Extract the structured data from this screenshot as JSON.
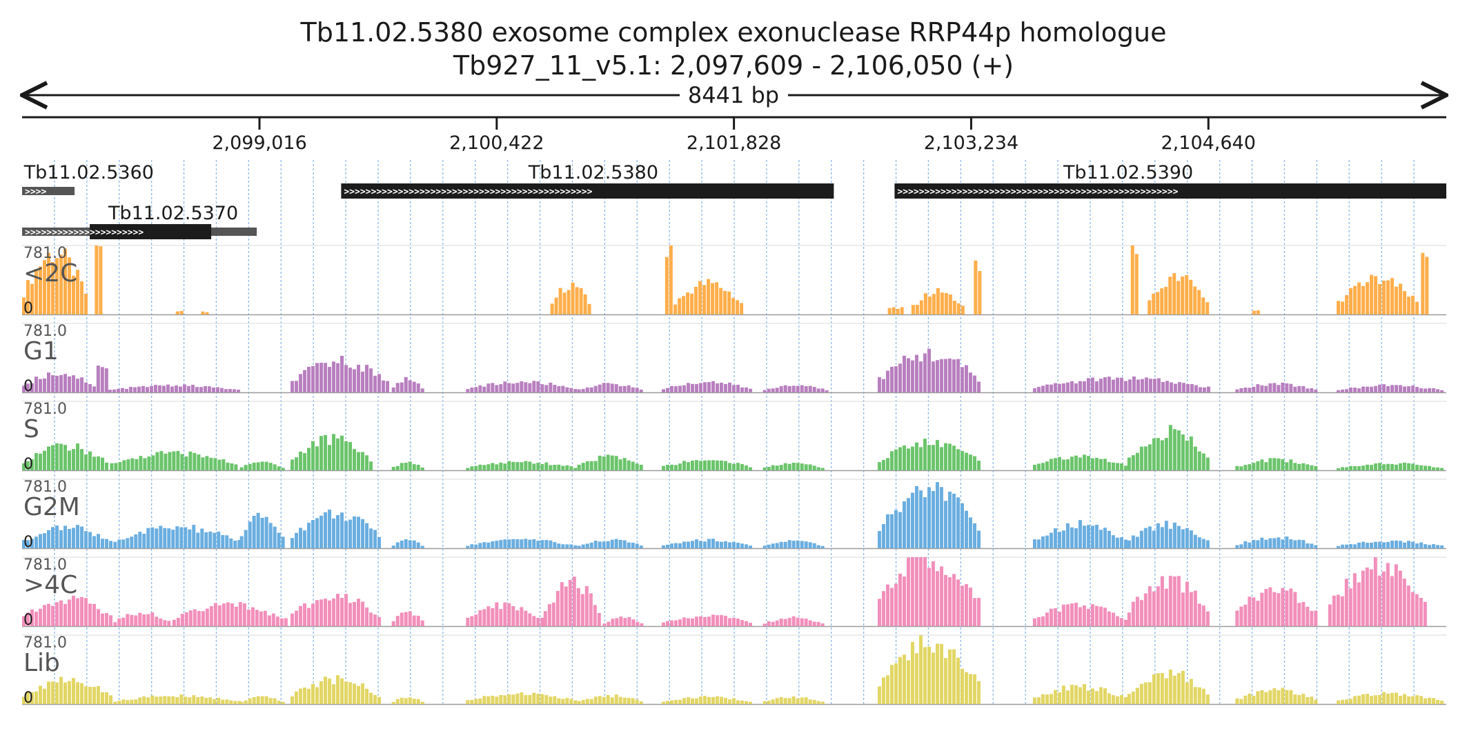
{
  "header": {
    "title": "Tb11.02.5380  exosome complex exonuclease RRP44p homologue",
    "locus": "Tb927_11_v5.1: 2,097,609 - 2,106,050 (+)",
    "span_label": "8441 bp"
  },
  "chart_data": {
    "type": "area",
    "chromosome": "Tb927_11_v5.1",
    "strand": "+",
    "x_range": [
      2097609,
      2106050
    ],
    "x_ticks": [
      {
        "value": 2099016,
        "label": "2,099,016"
      },
      {
        "value": 2100422,
        "label": "2,100,422"
      },
      {
        "value": 2101828,
        "label": "2,101,828"
      },
      {
        "value": 2103234,
        "label": "2,103,234"
      },
      {
        "value": 2104640,
        "label": "2,104,640"
      }
    ],
    "y_max_label": "781.0",
    "y_min_label": "0",
    "genes": [
      {
        "id": "Tb11.02.5360",
        "start": 2097609,
        "end": 2097920,
        "row": 0,
        "color": "#555555",
        "label_pos": 2097620
      },
      {
        "id": "Tb11.02.5380",
        "start": 2099500,
        "end": 2102420,
        "row": 0,
        "color": "#1c1c1c",
        "label_pos": 2100610
      },
      {
        "id": "Tb11.02.5390",
        "start": 2102780,
        "end": 2106050,
        "row": 0,
        "color": "#1c1c1c",
        "label_pos": 2103780
      },
      {
        "id": "Tb11.02.5370",
        "start": 2097609,
        "end": 2099000,
        "row": 1,
        "color": "#555555",
        "label_pos": 2098120,
        "core_start": 2098010,
        "core_end": 2098730
      }
    ],
    "tracks": [
      {
        "name": "<2C",
        "color": "#ffae4b",
        "peaks": [
          {
            "s": 2097609,
            "e": 2098000,
            "h": 0.88
          },
          {
            "s": 2098040,
            "e": 2098100,
            "h": 1.0
          },
          {
            "s": 2098520,
            "e": 2098580,
            "h": 0.05
          },
          {
            "s": 2098670,
            "e": 2098710,
            "h": 0.04
          },
          {
            "s": 2100740,
            "e": 2100980,
            "h": 0.43
          },
          {
            "s": 2101420,
            "e": 2101470,
            "h": 1.0
          },
          {
            "s": 2101470,
            "e": 2101880,
            "h": 0.45
          },
          {
            "s": 2102740,
            "e": 2102840,
            "h": 0.1
          },
          {
            "s": 2102880,
            "e": 2103210,
            "h": 0.33
          },
          {
            "s": 2103250,
            "e": 2103290,
            "h": 0.68
          },
          {
            "s": 2104180,
            "e": 2104230,
            "h": 0.92
          },
          {
            "s": 2104280,
            "e": 2104660,
            "h": 0.53
          },
          {
            "s": 2104900,
            "e": 2104960,
            "h": 0.05
          },
          {
            "s": 2105400,
            "e": 2105890,
            "h": 0.5
          },
          {
            "s": 2105900,
            "e": 2105950,
            "h": 1.0
          }
        ]
      },
      {
        "name": "G1",
        "color": "#b87fbf",
        "peaks": [
          {
            "s": 2097609,
            "e": 2098050,
            "h": 0.28
          },
          {
            "s": 2098050,
            "e": 2098120,
            "h": 0.35
          },
          {
            "s": 2098120,
            "e": 2098900,
            "h": 0.1
          },
          {
            "s": 2099200,
            "e": 2099800,
            "h": 0.45
          },
          {
            "s": 2099800,
            "e": 2099990,
            "h": 0.2
          },
          {
            "s": 2100240,
            "e": 2100900,
            "h": 0.15
          },
          {
            "s": 2100900,
            "e": 2101300,
            "h": 0.12
          },
          {
            "s": 2101400,
            "e": 2101950,
            "h": 0.15
          },
          {
            "s": 2102000,
            "e": 2102390,
            "h": 0.1
          },
          {
            "s": 2102680,
            "e": 2103300,
            "h": 0.55
          },
          {
            "s": 2103600,
            "e": 2104660,
            "h": 0.2
          },
          {
            "s": 2104800,
            "e": 2105300,
            "h": 0.12
          },
          {
            "s": 2105400,
            "e": 2106050,
            "h": 0.1
          }
        ]
      },
      {
        "name": "S",
        "color": "#6bc46b",
        "peaks": [
          {
            "s": 2097609,
            "e": 2098130,
            "h": 0.35
          },
          {
            "s": 2098130,
            "e": 2098900,
            "h": 0.25
          },
          {
            "s": 2098900,
            "e": 2099180,
            "h": 0.12
          },
          {
            "s": 2099200,
            "e": 2099700,
            "h": 0.45
          },
          {
            "s": 2099800,
            "e": 2099990,
            "h": 0.12
          },
          {
            "s": 2100240,
            "e": 2100900,
            "h": 0.12
          },
          {
            "s": 2100900,
            "e": 2101300,
            "h": 0.2
          },
          {
            "s": 2101400,
            "e": 2101950,
            "h": 0.15
          },
          {
            "s": 2102000,
            "e": 2102380,
            "h": 0.1
          },
          {
            "s": 2102680,
            "e": 2103300,
            "h": 0.4
          },
          {
            "s": 2103600,
            "e": 2104160,
            "h": 0.2
          },
          {
            "s": 2104160,
            "e": 2104660,
            "h": 0.55
          },
          {
            "s": 2104800,
            "e": 2105300,
            "h": 0.15
          },
          {
            "s": 2105400,
            "e": 2106050,
            "h": 0.1
          }
        ]
      },
      {
        "name": "G2M",
        "color": "#6aaee0",
        "peaks": [
          {
            "s": 2097609,
            "e": 2098150,
            "h": 0.3
          },
          {
            "s": 2098150,
            "e": 2098900,
            "h": 0.3
          },
          {
            "s": 2098900,
            "e": 2099180,
            "h": 0.45
          },
          {
            "s": 2099200,
            "e": 2099750,
            "h": 0.5
          },
          {
            "s": 2099800,
            "e": 2099990,
            "h": 0.12
          },
          {
            "s": 2100240,
            "e": 2100900,
            "h": 0.12
          },
          {
            "s": 2100900,
            "e": 2101300,
            "h": 0.12
          },
          {
            "s": 2101400,
            "e": 2101950,
            "h": 0.12
          },
          {
            "s": 2102000,
            "e": 2102380,
            "h": 0.1
          },
          {
            "s": 2102680,
            "e": 2103300,
            "h": 0.85
          },
          {
            "s": 2103600,
            "e": 2104160,
            "h": 0.35
          },
          {
            "s": 2104160,
            "e": 2104660,
            "h": 0.35
          },
          {
            "s": 2104800,
            "e": 2105300,
            "h": 0.15
          },
          {
            "s": 2105400,
            "e": 2106050,
            "h": 0.1
          }
        ]
      },
      {
        "name": ">4C",
        "color": "#f28fbb",
        "peaks": [
          {
            "s": 2097609,
            "e": 2098150,
            "h": 0.4
          },
          {
            "s": 2098150,
            "e": 2098500,
            "h": 0.2
          },
          {
            "s": 2098500,
            "e": 2099180,
            "h": 0.3
          },
          {
            "s": 2099200,
            "e": 2099750,
            "h": 0.45
          },
          {
            "s": 2099800,
            "e": 2099990,
            "h": 0.2
          },
          {
            "s": 2100240,
            "e": 2100700,
            "h": 0.3
          },
          {
            "s": 2100700,
            "e": 2101050,
            "h": 0.65
          },
          {
            "s": 2101050,
            "e": 2101300,
            "h": 0.12
          },
          {
            "s": 2101400,
            "e": 2101950,
            "h": 0.15
          },
          {
            "s": 2102000,
            "e": 2102380,
            "h": 0.12
          },
          {
            "s": 2102680,
            "e": 2103300,
            "h": 1.0
          },
          {
            "s": 2103600,
            "e": 2104160,
            "h": 0.3
          },
          {
            "s": 2104160,
            "e": 2104660,
            "h": 0.65
          },
          {
            "s": 2104800,
            "e": 2105300,
            "h": 0.55
          },
          {
            "s": 2105350,
            "e": 2105950,
            "h": 0.85
          }
        ]
      },
      {
        "name": "Lib",
        "color": "#e2d665",
        "peaks": [
          {
            "s": 2097609,
            "e": 2098150,
            "h": 0.35
          },
          {
            "s": 2098150,
            "e": 2098900,
            "h": 0.12
          },
          {
            "s": 2098900,
            "e": 2099180,
            "h": 0.1
          },
          {
            "s": 2099200,
            "e": 2099750,
            "h": 0.35
          },
          {
            "s": 2099800,
            "e": 2099990,
            "h": 0.1
          },
          {
            "s": 2100240,
            "e": 2100900,
            "h": 0.15
          },
          {
            "s": 2100900,
            "e": 2101300,
            "h": 0.12
          },
          {
            "s": 2101400,
            "e": 2101950,
            "h": 0.1
          },
          {
            "s": 2102000,
            "e": 2102380,
            "h": 0.1
          },
          {
            "s": 2102680,
            "e": 2103300,
            "h": 0.85
          },
          {
            "s": 2103600,
            "e": 2104160,
            "h": 0.25
          },
          {
            "s": 2104160,
            "e": 2104660,
            "h": 0.45
          },
          {
            "s": 2104800,
            "e": 2105300,
            "h": 0.2
          },
          {
            "s": 2105400,
            "e": 2106050,
            "h": 0.15
          }
        ]
      }
    ]
  }
}
